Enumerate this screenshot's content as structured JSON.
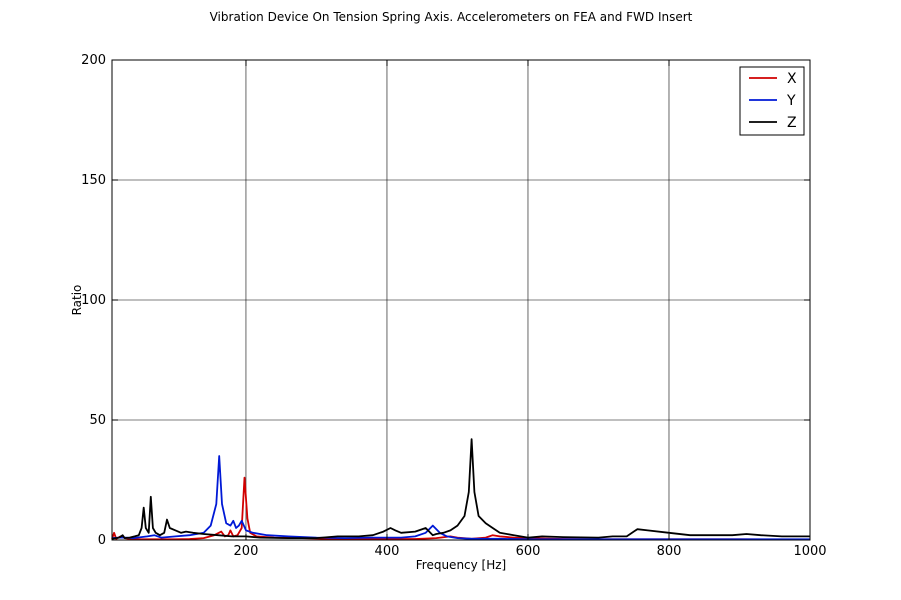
{
  "chart_data": {
    "type": "line",
    "title": "Vibration Device On Tension Spring Axis. Accelerometers on FEA and FWD Insert",
    "xlabel": "Frequency [Hz]",
    "ylabel": "Ratio",
    "xlim": [
      10,
      1000
    ],
    "ylim": [
      0,
      200
    ],
    "xticks": [
      200,
      400,
      600,
      800,
      1000
    ],
    "yticks": [
      0,
      50,
      100,
      150,
      200
    ],
    "grid": true,
    "legend_position": "top-right",
    "series": [
      {
        "name": "X",
        "color": "#d10000",
        "points": [
          [
            10,
            0.5
          ],
          [
            13,
            3
          ],
          [
            16,
            0.5
          ],
          [
            22,
            1.5
          ],
          [
            28,
            0.8
          ],
          [
            35,
            0.5
          ],
          [
            50,
            0.3
          ],
          [
            80,
            0.3
          ],
          [
            100,
            0.3
          ],
          [
            120,
            0.4
          ],
          [
            140,
            0.8
          ],
          [
            155,
            2
          ],
          [
            165,
            3.5
          ],
          [
            170,
            1.5
          ],
          [
            175,
            2
          ],
          [
            178,
            4
          ],
          [
            182,
            1.5
          ],
          [
            188,
            2
          ],
          [
            194,
            5
          ],
          [
            198,
            26
          ],
          [
            202,
            9
          ],
          [
            206,
            3
          ],
          [
            215,
            1.5
          ],
          [
            240,
            1
          ],
          [
            280,
            0.8
          ],
          [
            320,
            0.5
          ],
          [
            360,
            0.5
          ],
          [
            400,
            0.4
          ],
          [
            440,
            0.4
          ],
          [
            470,
            0.8
          ],
          [
            490,
            1.5
          ],
          [
            500,
            1
          ],
          [
            520,
            0.5
          ],
          [
            540,
            1
          ],
          [
            550,
            2
          ],
          [
            560,
            1.5
          ],
          [
            580,
            1
          ],
          [
            600,
            0.8
          ],
          [
            650,
            0.4
          ],
          [
            700,
            0.3
          ],
          [
            800,
            0.3
          ],
          [
            900,
            0.3
          ],
          [
            1000,
            0.2
          ]
        ]
      },
      {
        "name": "Y",
        "color": "#0019d6",
        "points": [
          [
            10,
            0.8
          ],
          [
            20,
            1
          ],
          [
            30,
            1
          ],
          [
            40,
            0.8
          ],
          [
            60,
            1.5
          ],
          [
            70,
            2
          ],
          [
            80,
            1
          ],
          [
            100,
            1.5
          ],
          [
            120,
            2
          ],
          [
            140,
            3
          ],
          [
            150,
            6
          ],
          [
            158,
            15
          ],
          [
            162,
            35
          ],
          [
            166,
            15
          ],
          [
            172,
            7
          ],
          [
            178,
            6
          ],
          [
            182,
            8
          ],
          [
            186,
            5
          ],
          [
            190,
            6
          ],
          [
            194,
            8
          ],
          [
            200,
            4
          ],
          [
            210,
            3
          ],
          [
            230,
            2
          ],
          [
            260,
            1.5
          ],
          [
            300,
            1
          ],
          [
            340,
            0.8
          ],
          [
            380,
            1
          ],
          [
            420,
            1
          ],
          [
            440,
            1.5
          ],
          [
            455,
            3
          ],
          [
            465,
            6
          ],
          [
            475,
            3
          ],
          [
            485,
            1.5
          ],
          [
            500,
            0.8
          ],
          [
            520,
            0.5
          ],
          [
            560,
            0.5
          ],
          [
            600,
            0.3
          ],
          [
            700,
            0.3
          ],
          [
            800,
            0.3
          ],
          [
            900,
            0.3
          ],
          [
            1000,
            0.3
          ]
        ]
      },
      {
        "name": "Z",
        "color": "#000000",
        "points": [
          [
            10,
            0.5
          ],
          [
            20,
            1
          ],
          [
            25,
            2
          ],
          [
            28,
            0.8
          ],
          [
            35,
            1
          ],
          [
            42,
            1.5
          ],
          [
            48,
            2
          ],
          [
            52,
            5
          ],
          [
            55,
            13.5
          ],
          [
            58,
            5
          ],
          [
            62,
            3
          ],
          [
            65,
            18
          ],
          [
            68,
            5
          ],
          [
            72,
            3
          ],
          [
            78,
            2
          ],
          [
            84,
            3
          ],
          [
            88,
            8.5
          ],
          [
            92,
            5
          ],
          [
            100,
            4
          ],
          [
            108,
            3
          ],
          [
            115,
            3.5
          ],
          [
            125,
            3
          ],
          [
            140,
            2.5
          ],
          [
            160,
            2
          ],
          [
            180,
            1.5
          ],
          [
            200,
            1.5
          ],
          [
            220,
            1
          ],
          [
            260,
            0.8
          ],
          [
            300,
            0.8
          ],
          [
            330,
            1.5
          ],
          [
            360,
            1.5
          ],
          [
            380,
            2
          ],
          [
            395,
            3.5
          ],
          [
            405,
            5
          ],
          [
            412,
            4
          ],
          [
            420,
            3
          ],
          [
            440,
            3.5
          ],
          [
            455,
            5
          ],
          [
            465,
            2
          ],
          [
            470,
            2.5
          ],
          [
            480,
            3
          ],
          [
            490,
            4
          ],
          [
            500,
            6
          ],
          [
            510,
            10
          ],
          [
            516,
            20
          ],
          [
            520,
            42
          ],
          [
            524,
            20
          ],
          [
            530,
            10
          ],
          [
            540,
            7
          ],
          [
            550,
            5
          ],
          [
            560,
            3
          ],
          [
            580,
            2
          ],
          [
            600,
            1
          ],
          [
            620,
            1.5
          ],
          [
            650,
            1.2
          ],
          [
            700,
            1
          ],
          [
            720,
            1.5
          ],
          [
            740,
            1.5
          ],
          [
            755,
            4.5
          ],
          [
            770,
            4
          ],
          [
            800,
            3
          ],
          [
            830,
            2
          ],
          [
            860,
            2
          ],
          [
            890,
            2
          ],
          [
            910,
            2.5
          ],
          [
            930,
            2
          ],
          [
            960,
            1.5
          ],
          [
            1000,
            1.5
          ]
        ]
      }
    ]
  }
}
